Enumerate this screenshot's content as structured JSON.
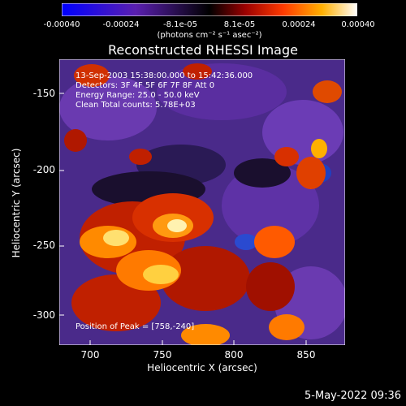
{
  "colorbar": {
    "ticks": [
      "-0.00040",
      "-0.00024",
      "-8.1e-05",
      "8.1e-05",
      "0.00024",
      "0.00040"
    ],
    "units": "(photons cm⁻² s⁻¹ asec⁻²)",
    "colormap": [
      "#0000ff",
      "#4b0082",
      "#000000",
      "#8b0000",
      "#ff4500",
      "#ffa500",
      "#ffff00",
      "#ffffff"
    ]
  },
  "title": "Reconstructed RHESSI Image",
  "info": {
    "line1": "13-Sep-2003 15:38:00.000 to 15:42:36.000",
    "line2": "Detectors: 3F 4F 5F 6F 7F 8F  Att 0",
    "line3": "Energy Range: 25.0 - 50.0 keV",
    "line4": "Clean     Total counts: 5.78E+03",
    "peak": "Position of Peak = [758,-240]"
  },
  "axes": {
    "ylabel": "Heliocentric Y (arcsec)",
    "xlabel": "Heliocentric X (arcsec)",
    "yticks": [
      "-150",
      "-200",
      "-250",
      "-300"
    ],
    "xticks": [
      "700",
      "750",
      "800",
      "850"
    ]
  },
  "timestamp": "5-May-2022 09:36"
}
